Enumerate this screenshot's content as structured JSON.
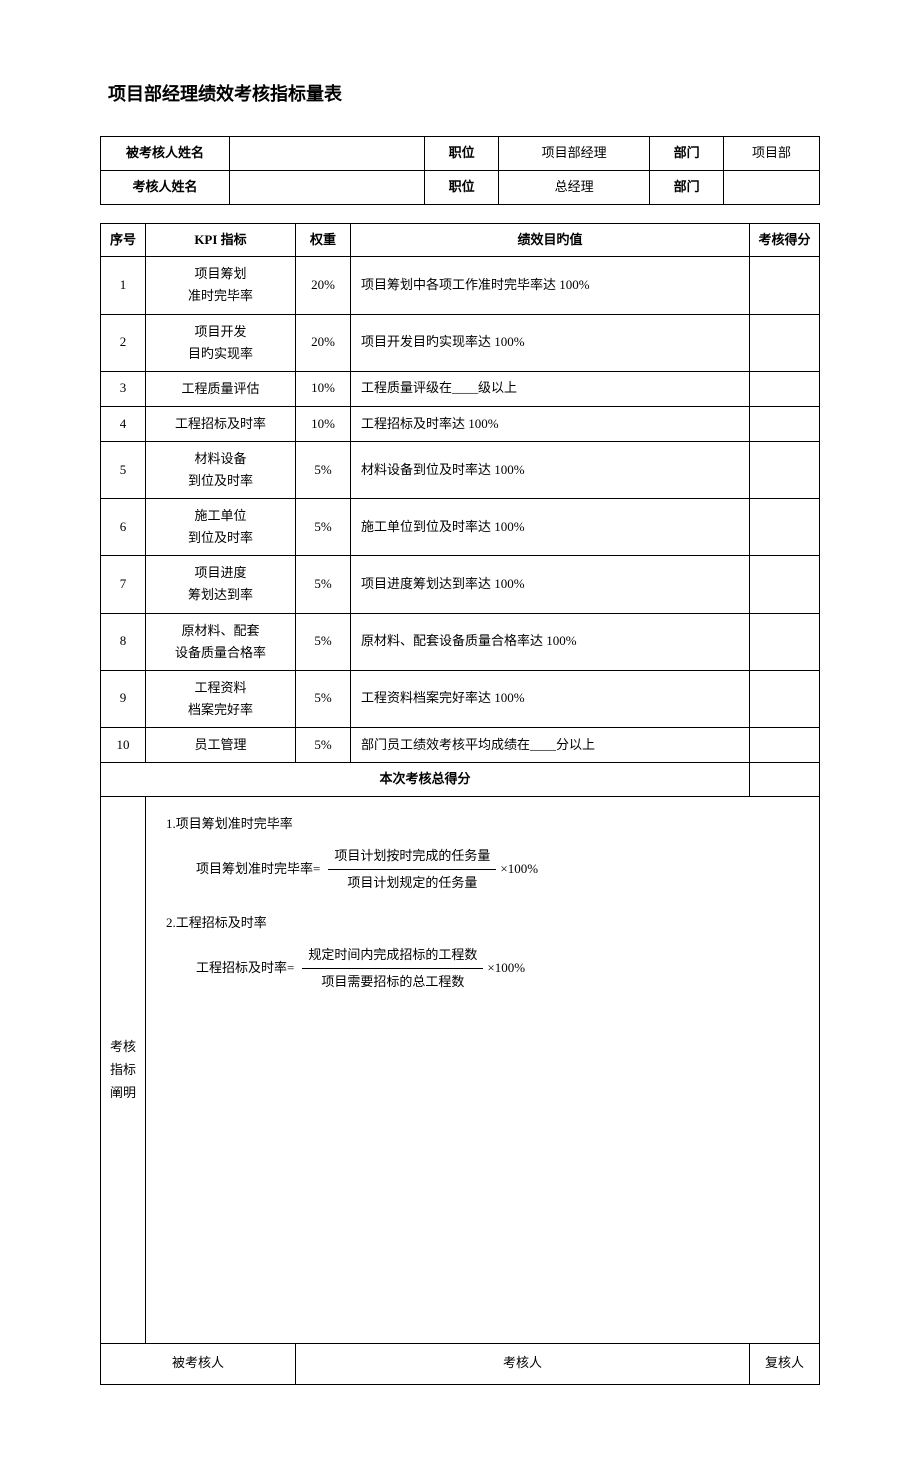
{
  "title": "项目部经理绩效考核指标量表",
  "header": {
    "row1": {
      "label1": "被考核人姓名",
      "val1": "",
      "posLabel": "职位",
      "posVal": "项目部经理",
      "deptLabel": "部门",
      "deptVal": "项目部"
    },
    "row2": {
      "label1": "考核人姓名",
      "val1": "",
      "posLabel": "职位",
      "posVal": "总经理",
      "deptLabel": "部门",
      "deptVal": ""
    }
  },
  "kpiHeaders": {
    "seq": "序号",
    "kpi": "KPI 指标",
    "weight": "权重",
    "target": "绩效目旳值",
    "score": "考核得分"
  },
  "kpiRows": [
    {
      "seq": "1",
      "kpi": "项目筹划\n准时完毕率",
      "weight": "20%",
      "target": "项目筹划中各项工作准时完毕率达 100%",
      "score": ""
    },
    {
      "seq": "2",
      "kpi": "项目开发\n目旳实现率",
      "weight": "20%",
      "target": "项目开发目旳实现率达 100%",
      "score": ""
    },
    {
      "seq": "3",
      "kpi": "工程质量评估",
      "weight": "10%",
      "target": "工程质量评级在____级以上",
      "score": ""
    },
    {
      "seq": "4",
      "kpi": "工程招标及时率",
      "weight": "10%",
      "target": "工程招标及时率达 100%",
      "score": ""
    },
    {
      "seq": "5",
      "kpi": "材料设备\n到位及时率",
      "weight": "5%",
      "target": "材料设备到位及时率达 100%",
      "score": ""
    },
    {
      "seq": "6",
      "kpi": "施工单位\n到位及时率",
      "weight": "5%",
      "target": "施工单位到位及时率达 100%",
      "score": ""
    },
    {
      "seq": "7",
      "kpi": "项目进度\n筹划达到率",
      "weight": "5%",
      "target": "项目进度筹划达到率达 100%",
      "score": ""
    },
    {
      "seq": "8",
      "kpi": "原材料、配套\n设备质量合格率",
      "weight": "5%",
      "target": "原材料、配套设备质量合格率达 100%",
      "score": ""
    },
    {
      "seq": "9",
      "kpi": "工程资料\n档案完好率",
      "weight": "5%",
      "target": "工程资料档案完好率达 100%",
      "score": ""
    },
    {
      "seq": "10",
      "kpi": "员工管理",
      "weight": "5%",
      "target": "部门员工绩效考核平均成绩在____分以上",
      "score": ""
    }
  ],
  "totalLabel": "本次考核总得分",
  "explain": {
    "label": "考核\n指标\n阐明",
    "item1": {
      "title": "1.项目筹划准时完毕率",
      "formulaLabel": "项目筹划准时完毕率=",
      "num": "项目计划按时完成的任务量",
      "den": "项目计划规定的任务量",
      "suffix": "×100%"
    },
    "item2": {
      "title": "2.工程招标及时率",
      "formulaLabel": "工程招标及时率=",
      "num": "规定时间内完成招标的工程数",
      "den": "项目需要招标的总工程数",
      "suffix": "×100%"
    }
  },
  "signatures": {
    "s1": "被考核人",
    "s2": "考核人",
    "s3": "复核人"
  },
  "style": {
    "background_color": "#ffffff",
    "text_color": "#000000",
    "border_color": "#000000",
    "title_fontsize": 18,
    "body_fontsize": 13,
    "font_family": "SimSun"
  }
}
